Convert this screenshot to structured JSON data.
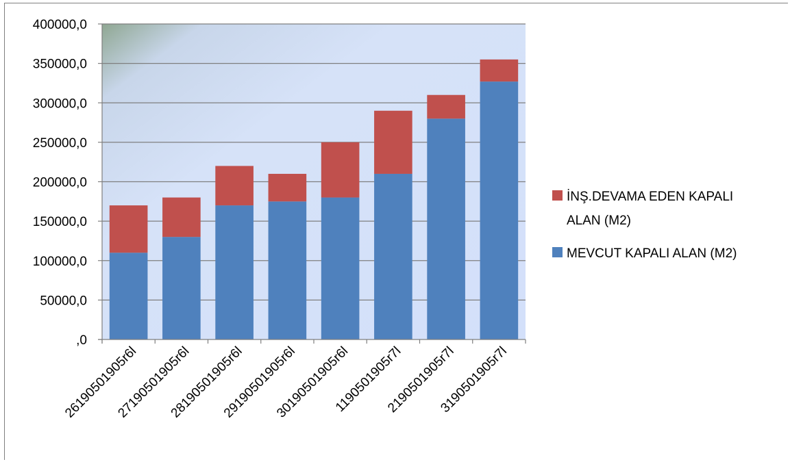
{
  "chart_data": {
    "type": "bar",
    "stacked": true,
    "title": "",
    "xlabel": "",
    "ylabel": "",
    "categories": [
      "26190501905r6l",
      "27190501905r6l",
      "28190501905r6l",
      "29190501905r6l",
      "30190501905r6l",
      "1190501905r7l",
      "2190501905r7l",
      "3190501905r7l"
    ],
    "series": [
      {
        "name": "MEVCUT KAPALI ALAN (M2)",
        "color": "#4f81bd",
        "values": [
          110000,
          130000,
          170000,
          175000,
          180000,
          210000,
          280000,
          327000
        ]
      },
      {
        "name": "İNŞ.DEVAMA EDEN KAPALI ALAN (M2)",
        "color": "#c0504d",
        "values": [
          60000,
          50000,
          50000,
          35000,
          70000,
          80000,
          30000,
          28000
        ]
      }
    ],
    "ylim": [
      0,
      400000
    ],
    "yticks": [
      0,
      50000,
      100000,
      150000,
      200000,
      250000,
      300000,
      350000,
      400000
    ],
    "ytick_labels": [
      ",0",
      "50000,0",
      "100000,0",
      "150000,0",
      "200000,0",
      "250000,0",
      "300000,0",
      "350000,0",
      "400000,0"
    ],
    "grid": true,
    "legend_position": "right",
    "legend_lines": [
      [
        "İNŞ.DEVAMA EDEN KAPALI",
        "ALAN (M2)"
      ],
      [
        "MEVCUT KAPALI ALAN (M2)"
      ]
    ]
  }
}
